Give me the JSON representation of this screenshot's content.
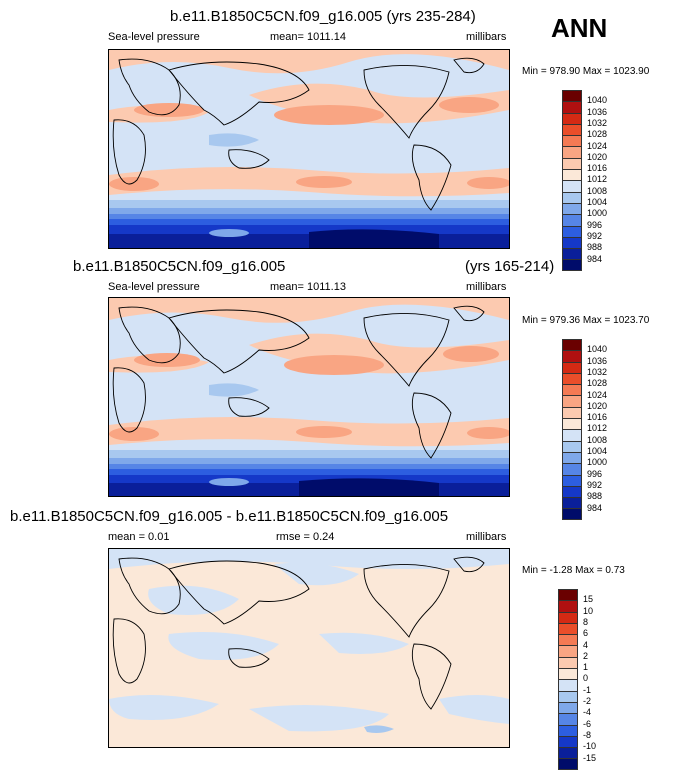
{
  "ann_label": "ANN",
  "panels": [
    {
      "title": "b.e11.B1850C5CN.f09_g16.005 (yrs 235-284)",
      "field": "Sea-level pressure",
      "mean": "mean= 1011.14",
      "units": "millibars",
      "minmax": "Min = 978.90 Max = 1023.90",
      "colorbar_labels": [
        "1040",
        "1036",
        "1032",
        "1028",
        "1024",
        "1020",
        "1016",
        "1012",
        "1008",
        "1004",
        "1000",
        "996",
        "992",
        "988",
        "984"
      ],
      "colorbar_colors": [
        "#6a0000",
        "#b01010",
        "#d42a14",
        "#ea4e2a",
        "#f47a54",
        "#f9a583",
        "#fccab0",
        "#fbe8d8",
        "#d4e3f6",
        "#a8c8ef",
        "#7fa8ea",
        "#5685e6",
        "#2d5ee0",
        "#1538c8",
        "#0a1f9a",
        "#000c6a"
      ]
    },
    {
      "title_left": "b.e11.B1850C5CN.f09_g16.005",
      "title_right": "(yrs 165-214)",
      "field": "Sea-level pressure",
      "mean": "mean= 1011.13",
      "units": "millibars",
      "minmax": "Min = 979.36 Max = 1023.70",
      "colorbar_labels": [
        "1040",
        "1036",
        "1032",
        "1028",
        "1024",
        "1020",
        "1016",
        "1012",
        "1008",
        "1004",
        "1000",
        "996",
        "992",
        "988",
        "984"
      ],
      "colorbar_colors": [
        "#6a0000",
        "#b01010",
        "#d42a14",
        "#ea4e2a",
        "#f47a54",
        "#f9a583",
        "#fccab0",
        "#fbe8d8",
        "#d4e3f6",
        "#a8c8ef",
        "#7fa8ea",
        "#5685e6",
        "#2d5ee0",
        "#1538c8",
        "#0a1f9a",
        "#000c6a"
      ]
    },
    {
      "title": "b.e11.B1850C5CN.f09_g16.005 - b.e11.B1850C5CN.f09_g16.005",
      "mean": "mean =  0.01",
      "rmse": "rmse =   0.24",
      "units": "millibars",
      "minmax": "Min =  -1.28 Max =   0.73",
      "colorbar_labels": [
        "15",
        "10",
        "8",
        "6",
        "4",
        "2",
        "1",
        "0",
        "-1",
        "-2",
        "-4",
        "-6",
        "-8",
        "-10",
        "-15"
      ],
      "colorbar_colors": [
        "#6a0000",
        "#b01010",
        "#d42a14",
        "#ea4e2a",
        "#f47a54",
        "#f9a583",
        "#fccab0",
        "#fbe8d8",
        "#d4e3f6",
        "#a8c8ef",
        "#7fa8ea",
        "#5685e6",
        "#2d5ee0",
        "#1538c8",
        "#0a1f9a",
        "#000c6a"
      ]
    }
  ]
}
